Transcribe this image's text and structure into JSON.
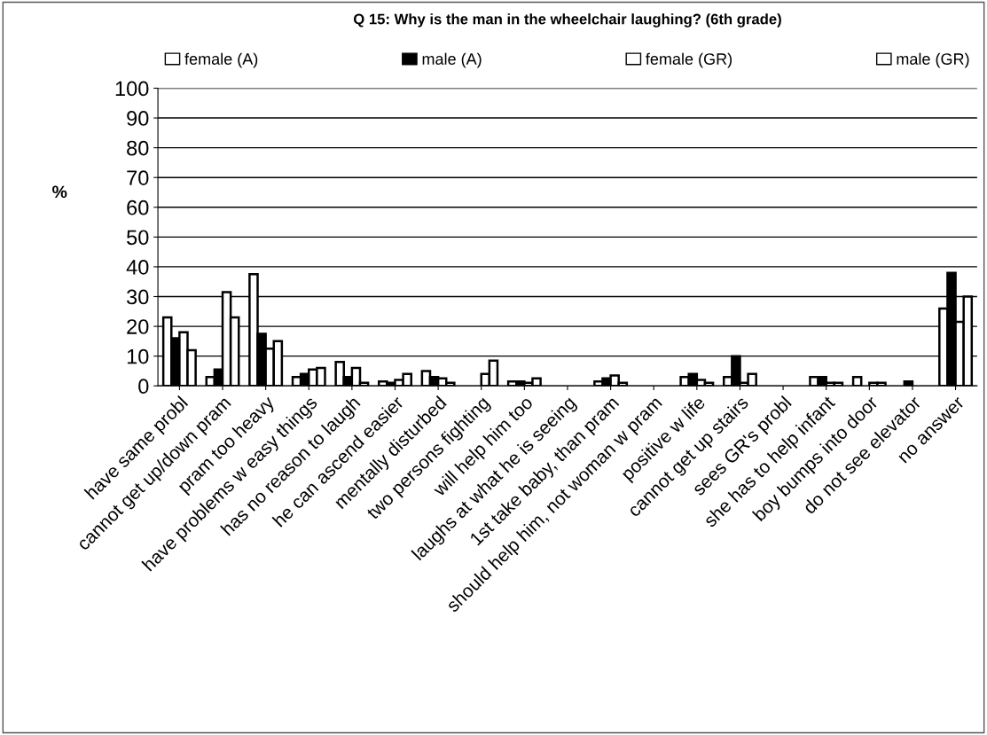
{
  "chart_data": {
    "type": "bar",
    "title": "Q 15: Why is the man in the wheelchair laughing? (6th grade)",
    "ylabel": "%",
    "categories": [
      "have same probl",
      "cannot get up/down pram",
      "pram too heavy",
      "have problems w easy things",
      "has no reason to laugh",
      "he can ascend easier",
      "mentally disturbed",
      "two persons fighting",
      "will help him too",
      "laughs at what he is seeing",
      "1st take baby, than pram",
      "should help him, not woman w pram",
      "positive w life",
      "cannot get up stairs",
      "sees GR's probl",
      "she has to help infant",
      "boy bumps into door",
      "do not see elevator",
      "no answer"
    ],
    "series": [
      {
        "name": "female (A)",
        "color": "#ffffff",
        "values": [
          23,
          3,
          37.5,
          3,
          8,
          1.5,
          5,
          0,
          1.5,
          0,
          1.5,
          0,
          3,
          3,
          0,
          3,
          3,
          0,
          26
        ]
      },
      {
        "name": "male (A)",
        "color": "#000000",
        "values": [
          16,
          5.5,
          17.5,
          4,
          3,
          1,
          3,
          0,
          1.5,
          0,
          2.5,
          0,
          4,
          10,
          0,
          3,
          0,
          1.5,
          38
        ]
      },
      {
        "name": "female (GR)",
        "color": "#ffffff",
        "values": [
          18,
          31.5,
          12.5,
          5.5,
          6,
          2,
          2.5,
          4,
          1,
          0,
          3.5,
          0,
          2,
          1,
          0,
          1,
          1,
          0,
          21.5
        ]
      },
      {
        "name": "male (GR)",
        "color": "#ffffff",
        "values": [
          12,
          23,
          15,
          6,
          1,
          4,
          1,
          8.5,
          2.5,
          0,
          1,
          0,
          1,
          4,
          0,
          1,
          1,
          0,
          30
        ]
      }
    ],
    "ylim": [
      0,
      100
    ],
    "yticks": [
      0,
      10,
      20,
      30,
      40,
      50,
      60,
      70,
      80,
      90,
      100
    ],
    "grid": "y",
    "legend": "top"
  }
}
